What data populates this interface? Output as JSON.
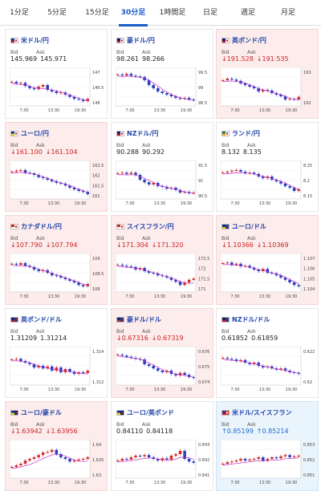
{
  "tabs": [
    {
      "label": "1分足",
      "active": false
    },
    {
      "label": "5分足",
      "active": false
    },
    {
      "label": "15分足",
      "active": false
    },
    {
      "label": "30分足",
      "active": true
    },
    {
      "label": "1時間足",
      "active": false
    },
    {
      "label": "日足",
      "active": false
    },
    {
      "label": "週足",
      "active": false
    },
    {
      "label": "月足",
      "active": false
    }
  ],
  "labels": {
    "bid": "Bid",
    "ask": "Ask"
  },
  "colors": {
    "up_candle": "#d62b2b",
    "down_candle": "#2b3fbf",
    "ma_line": "#cc33cc",
    "tab_active": "#1a5cc8"
  },
  "pairs": [
    {
      "name": "米ドル/円",
      "flag": "us-jp",
      "trend": "none",
      "bid": "145.969",
      "ask": "145.971",
      "ticks": [
        "147",
        "146.5",
        "146"
      ],
      "x_ticks": [
        "7:30",
        "13:30",
        "19:30"
      ]
    },
    {
      "name": "豪ドル/円",
      "flag": "au-jp",
      "trend": "none",
      "bid": "98.261",
      "ask": "98.266",
      "ticks": [
        "99.5",
        "99",
        "98.5"
      ],
      "x_ticks": [
        "7:30",
        "13:30",
        "19:30"
      ]
    },
    {
      "name": "英ポンド/円",
      "flag": "gb-jp",
      "trend": "down",
      "bid": "↓191.528",
      "ask": "↓191.535",
      "ticks": [
        "193",
        "192"
      ],
      "x_ticks": [
        "7:30",
        "13:30",
        "19:30"
      ]
    },
    {
      "name": "ユーロ/円",
      "flag": "eu-jp",
      "trend": "down",
      "bid": "↓161.100",
      "ask": "↓161.104",
      "ticks": [
        "162.5",
        "162",
        "161.5",
        "161"
      ],
      "x_ticks": [
        "7:30",
        "13:30",
        "19:30"
      ]
    },
    {
      "name": "NZドル/円",
      "flag": "nz-jp",
      "trend": "none",
      "bid": "90.288",
      "ask": "90.292",
      "ticks": [
        "91.5",
        "91",
        "90.5"
      ],
      "x_ticks": [
        "7:30",
        "13:30",
        "19:30"
      ]
    },
    {
      "name": "ランド/円",
      "flag": "za-jp",
      "trend": "none",
      "bid": "8.132",
      "ask": "8.135",
      "ticks": [
        "8.25",
        "8.2",
        "8.15"
      ],
      "x_ticks": [
        "7:30",
        "13:30",
        "19:30"
      ]
    },
    {
      "name": "カナダドル/円",
      "flag": "ca-jp",
      "trend": "down",
      "bid": "↓107.790",
      "ask": "↓107.794",
      "ticks": [
        "109",
        "108.5",
        "108"
      ],
      "x_ticks": [
        "7:30",
        "13:30",
        "19:30"
      ]
    },
    {
      "name": "スイスフラン/円",
      "flag": "ch-jp",
      "trend": "down",
      "bid": "↓171.304",
      "ask": "↓171.320",
      "ticks": [
        "172.5",
        "172",
        "171.5",
        "171"
      ],
      "x_ticks": [
        "7:30",
        "13:30",
        "19:30"
      ]
    },
    {
      "name": "ユーロ/ドル",
      "flag": "eu-us",
      "trend": "down",
      "bid": "↓1.10366",
      "ask": "↓1.10369",
      "ticks": [
        "1.107",
        "1.106",
        "1.105",
        "1.104"
      ],
      "x_ticks": [
        "7:30",
        "13:30",
        "19:30"
      ]
    },
    {
      "name": "英ポンド/ドル",
      "flag": "gb-us",
      "trend": "none",
      "bid": "1.31209",
      "ask": "1.31214",
      "ticks": [
        "1.314",
        "1.312"
      ],
      "x_ticks": [
        "7:30",
        "13:30",
        "19:30"
      ]
    },
    {
      "name": "豪ドル/ドル",
      "flag": "au-us",
      "trend": "down",
      "bid": "↓0.67316",
      "ask": "↓0.67319",
      "ticks": [
        "0.676",
        "0.675",
        "0.674"
      ],
      "x_ticks": [
        "7:30",
        "13:30",
        "19:30"
      ]
    },
    {
      "name": "NZドル/ドル",
      "flag": "nz-us",
      "trend": "none",
      "bid": "0.61852",
      "ask": "0.61859",
      "ticks": [
        "0.622",
        "0.62"
      ],
      "x_ticks": [
        "7:30",
        "13:30",
        "19:30"
      ]
    },
    {
      "name": "ユーロ/豪ドル",
      "flag": "eu-au",
      "trend": "down",
      "bid": "↓1.63942",
      "ask": "↓1.63956",
      "ticks": [
        "1.64",
        "1.635",
        "1.63"
      ],
      "x_ticks": [
        "7:30",
        "13:30",
        "19:30"
      ]
    },
    {
      "name": "ユーロ/英ポンド",
      "flag": "eu-gb",
      "trend": "none",
      "bid": "0.84110",
      "ask": "0.84118",
      "ticks": [
        "0.843",
        "0.842",
        "0.841"
      ],
      "x_ticks": [
        "7:30",
        "13:30",
        "19:30"
      ]
    },
    {
      "name": "米ドル/スイスフラン",
      "flag": "us-ch",
      "trend": "up",
      "bid": "↑0.85199",
      "ask": "↑0.85214",
      "ticks": [
        "0.853",
        "0.852",
        "0.851"
      ],
      "x_ticks": [
        "7:30",
        "13:30",
        "19:30"
      ]
    }
  ]
}
